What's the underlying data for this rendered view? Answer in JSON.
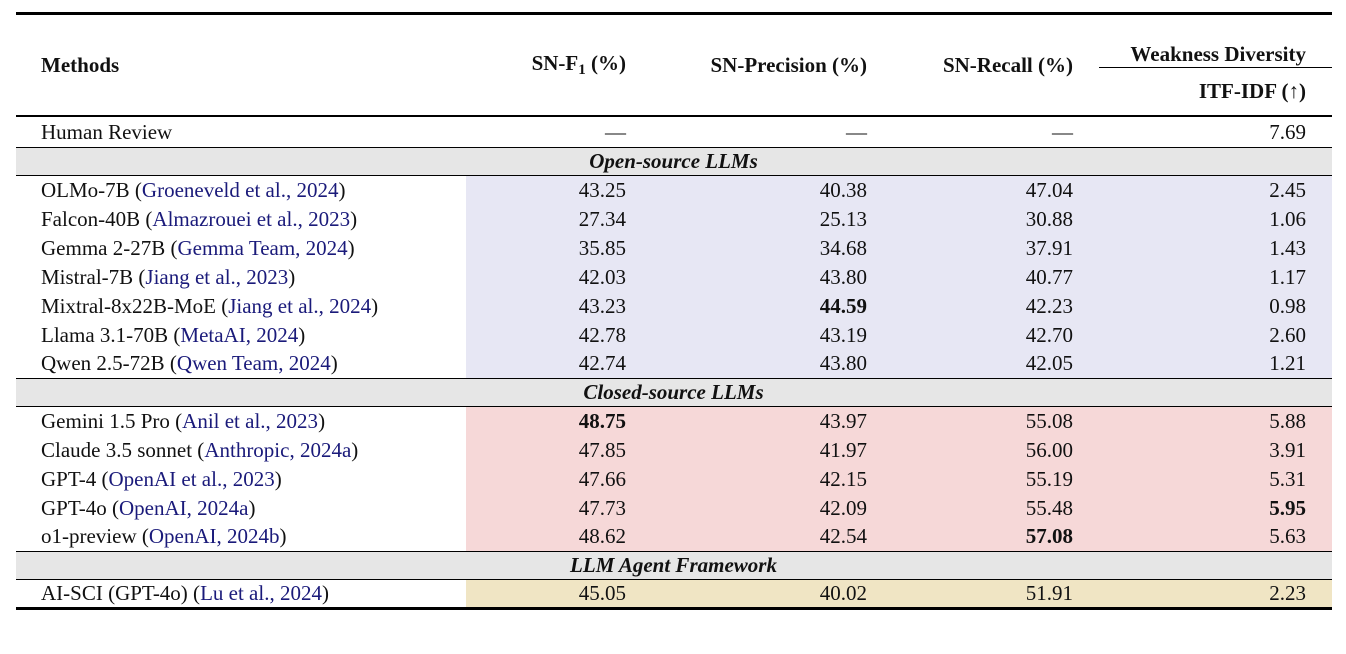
{
  "header": {
    "methods": "Methods",
    "sn_f1": "SN-F",
    "sn_f1_sub": "1",
    "sn_f1_unit": " (%)",
    "sn_precision": "SN-Precision (%)",
    "sn_recall": "SN-Recall (%)",
    "weakness_diversity": "Weakness Diversity",
    "itf_idf": "ITF-IDF (↑)"
  },
  "human_review": {
    "method": "Human Review",
    "cite": "",
    "f1": "—",
    "precision": "—",
    "recall": "—",
    "itf_idf": "7.69"
  },
  "sections": [
    {
      "title": "Open-source LLMs",
      "rows": [
        {
          "method": "OLMo-7B (",
          "cite": "Groeneveld et al., 2024",
          "close": ")",
          "f1": "43.25",
          "precision": "40.38",
          "recall": "47.04",
          "itf_idf": "2.45"
        },
        {
          "method": "Falcon-40B (",
          "cite": "Almazrouei et al., 2023",
          "close": ")",
          "f1": "27.34",
          "precision": "25.13",
          "recall": "30.88",
          "itf_idf": "1.06"
        },
        {
          "method": "Gemma 2-27B (",
          "cite": "Gemma Team, 2024",
          "close": ")",
          "f1": "35.85",
          "precision": "34.68",
          "recall": "37.91",
          "itf_idf": "1.43"
        },
        {
          "method": "Mistral-7B (",
          "cite": "Jiang et al., 2023",
          "close": ")",
          "f1": "42.03",
          "precision": "43.80",
          "recall": "40.77",
          "itf_idf": "1.17"
        },
        {
          "method": "Mixtral-8x22B-MoE (",
          "cite": "Jiang et al., 2024",
          "close": ")",
          "f1": "43.23",
          "precision": "44.59",
          "recall": "42.23",
          "itf_idf": "0.98"
        },
        {
          "method": "Llama 3.1-70B (",
          "cite": "MetaAI, 2024",
          "close": ")",
          "f1": "42.78",
          "precision": "43.19",
          "recall": "42.70",
          "itf_idf": "2.60"
        },
        {
          "method": "Qwen 2.5-72B (",
          "cite": "Qwen Team, 2024",
          "close": ")",
          "f1": "42.74",
          "precision": "43.80",
          "recall": "42.05",
          "itf_idf": "1.21"
        }
      ]
    },
    {
      "title": "Closed-source LLMs",
      "rows": [
        {
          "method": "Gemini 1.5 Pro (",
          "cite": "Anil et al., 2023",
          "close": ")",
          "f1": "48.75",
          "precision": "43.97",
          "recall": "55.08",
          "itf_idf": "5.88"
        },
        {
          "method": "Claude 3.5 sonnet (",
          "cite": "Anthropic, 2024a",
          "close": ")",
          "f1": "47.85",
          "precision": "41.97",
          "recall": "56.00",
          "itf_idf": "3.91"
        },
        {
          "method": "GPT-4 (",
          "cite": "OpenAI et al., 2023",
          "close": ")",
          "f1": "47.66",
          "precision": "42.15",
          "recall": "55.19",
          "itf_idf": "5.31"
        },
        {
          "method": "GPT-4o (",
          "cite": "OpenAI, 2024a",
          "close": ")",
          "f1": "47.73",
          "precision": "42.09",
          "recall": "55.48",
          "itf_idf": "5.95"
        },
        {
          "method": "o1-preview (",
          "cite": "OpenAI, 2024b",
          "close": ")",
          "f1": "48.62",
          "precision": "42.54",
          "recall": "57.08",
          "itf_idf": "5.63"
        }
      ]
    },
    {
      "title": "LLM Agent Framework",
      "rows": [
        {
          "method": "AI-SCI (GPT-4o) (",
          "cite": "Lu et al., 2024",
          "close": ")",
          "f1": "45.05",
          "precision": "40.02",
          "recall": "51.91",
          "itf_idf": "2.23"
        }
      ]
    }
  ],
  "colors": {
    "open_bg": "#e7e7f4",
    "closed_bg": "#f6d8d8",
    "agent_bg": "#f0e5c4",
    "section_bg": "#e6e6e6",
    "citation": "#1a1a7a"
  }
}
